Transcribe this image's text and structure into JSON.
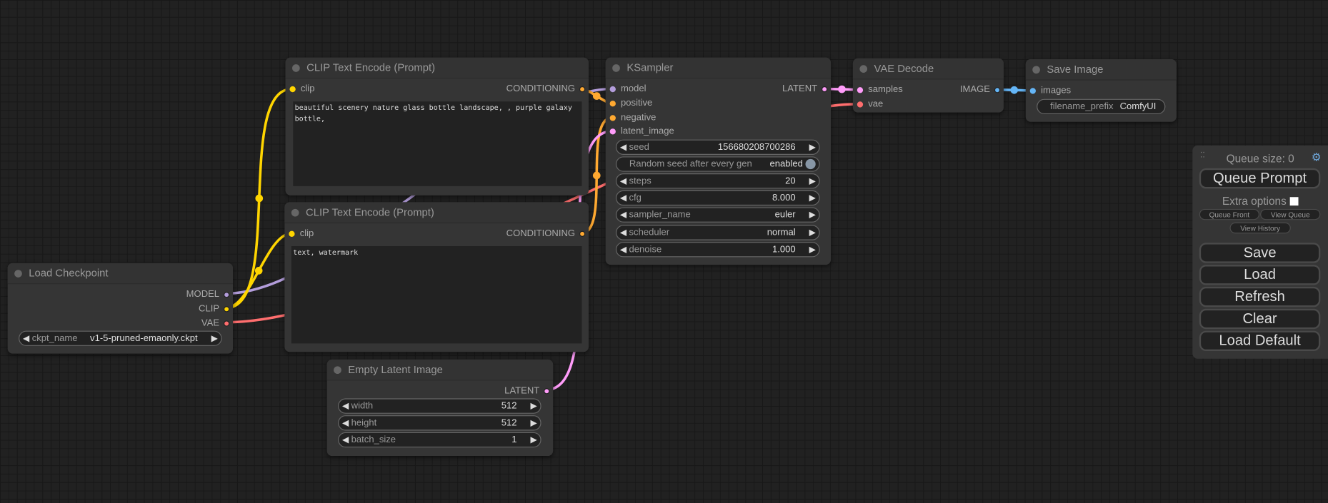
{
  "colors": {
    "clip": "#FFD500",
    "model": "#B39DDB",
    "vae": "#FF6E6E",
    "conditioning": "#FFA931",
    "latent": "#FF9CF9",
    "image": "#64B5F6"
  },
  "nodes": {
    "clip1": {
      "title": "CLIP Text Encode (Prompt)",
      "input": "clip",
      "output": "CONDITIONING",
      "text": "beautiful scenery nature glass bottle landscape, , purple galaxy bottle,"
    },
    "clip2": {
      "title": "CLIP Text Encode (Prompt)",
      "input": "clip",
      "output": "CONDITIONING",
      "text": "text, watermark"
    },
    "checkpoint": {
      "title": "Load Checkpoint",
      "outputs": [
        "MODEL",
        "CLIP",
        "VAE"
      ],
      "widget": {
        "label": "ckpt_name",
        "value": "v1-5-pruned-emaonly.ckpt"
      }
    },
    "latent": {
      "title": "Empty Latent Image",
      "output": "LATENT",
      "widgets": [
        {
          "label": "width",
          "value": "512"
        },
        {
          "label": "height",
          "value": "512"
        },
        {
          "label": "batch_size",
          "value": "1"
        }
      ]
    },
    "ksampler": {
      "title": "KSampler",
      "inputs": [
        "model",
        "positive",
        "negative",
        "latent_image"
      ],
      "output": "LATENT",
      "seed": {
        "label": "seed",
        "value": "156680208700286"
      },
      "random_seed": {
        "label": "Random seed after every gen",
        "value": "enabled"
      },
      "widgets": [
        {
          "label": "steps",
          "value": "20"
        },
        {
          "label": "cfg",
          "value": "8.000"
        },
        {
          "label": "sampler_name",
          "value": "euler"
        },
        {
          "label": "scheduler",
          "value": "normal"
        },
        {
          "label": "denoise",
          "value": "1.000"
        }
      ]
    },
    "vaedecode": {
      "title": "VAE Decode",
      "inputs": [
        "samples",
        "vae"
      ],
      "output": "IMAGE"
    },
    "save": {
      "title": "Save Image",
      "input": "images",
      "widget": {
        "label": "filename_prefix",
        "value": "ComfyUI"
      }
    }
  },
  "panel": {
    "queue_size": "Queue size: 0",
    "queue_prompt": "Queue Prompt",
    "extra_options": "Extra options",
    "extra_checked": false,
    "queue_front": "Queue Front",
    "view_queue": "View Queue",
    "view_history": "View History",
    "buttons": [
      "Save",
      "Load",
      "Refresh",
      "Clear",
      "Load Default"
    ],
    "drag_icon": "drag-handle-icon",
    "settings_icon": "gear-icon"
  }
}
